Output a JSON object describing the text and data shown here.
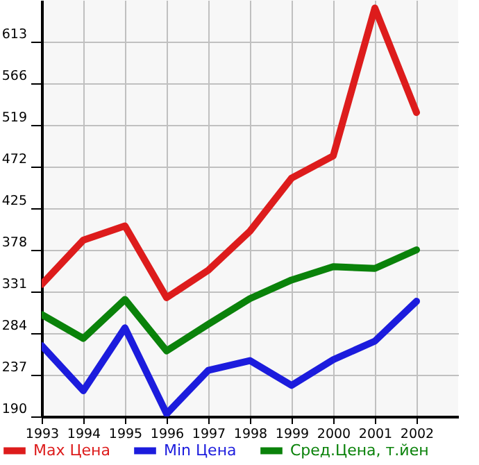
{
  "chart_data": {
    "type": "line",
    "x": [
      1993,
      1994,
      1995,
      1996,
      1997,
      1998,
      1999,
      2000,
      2001,
      2002
    ],
    "xlim": [
      1993,
      2003
    ],
    "xticks": [
      1993,
      1994,
      1995,
      1996,
      1997,
      1998,
      1999,
      2000,
      2001,
      2002
    ],
    "ylim": [
      190,
      660
    ],
    "yticks": [
      190,
      237,
      284,
      331,
      378,
      425,
      472,
      519,
      566,
      613
    ],
    "grid": true,
    "legend": "bottom",
    "series": [
      {
        "name": "Max Цена",
        "color": "#dd1c1c",
        "values": [
          339,
          389,
          405,
          324,
          355,
          399,
          459,
          484,
          651,
          533
        ]
      },
      {
        "name": "Min Цена",
        "color": "#1c1cdd",
        "values": [
          270,
          219,
          290,
          193,
          242,
          253,
          225,
          254,
          275,
          320
        ]
      },
      {
        "name": "Сред.Цена, т.йен",
        "color": "#0a820a",
        "values": [
          305,
          278,
          322,
          264,
          294,
          323,
          344,
          359,
          357,
          378
        ]
      }
    ]
  }
}
